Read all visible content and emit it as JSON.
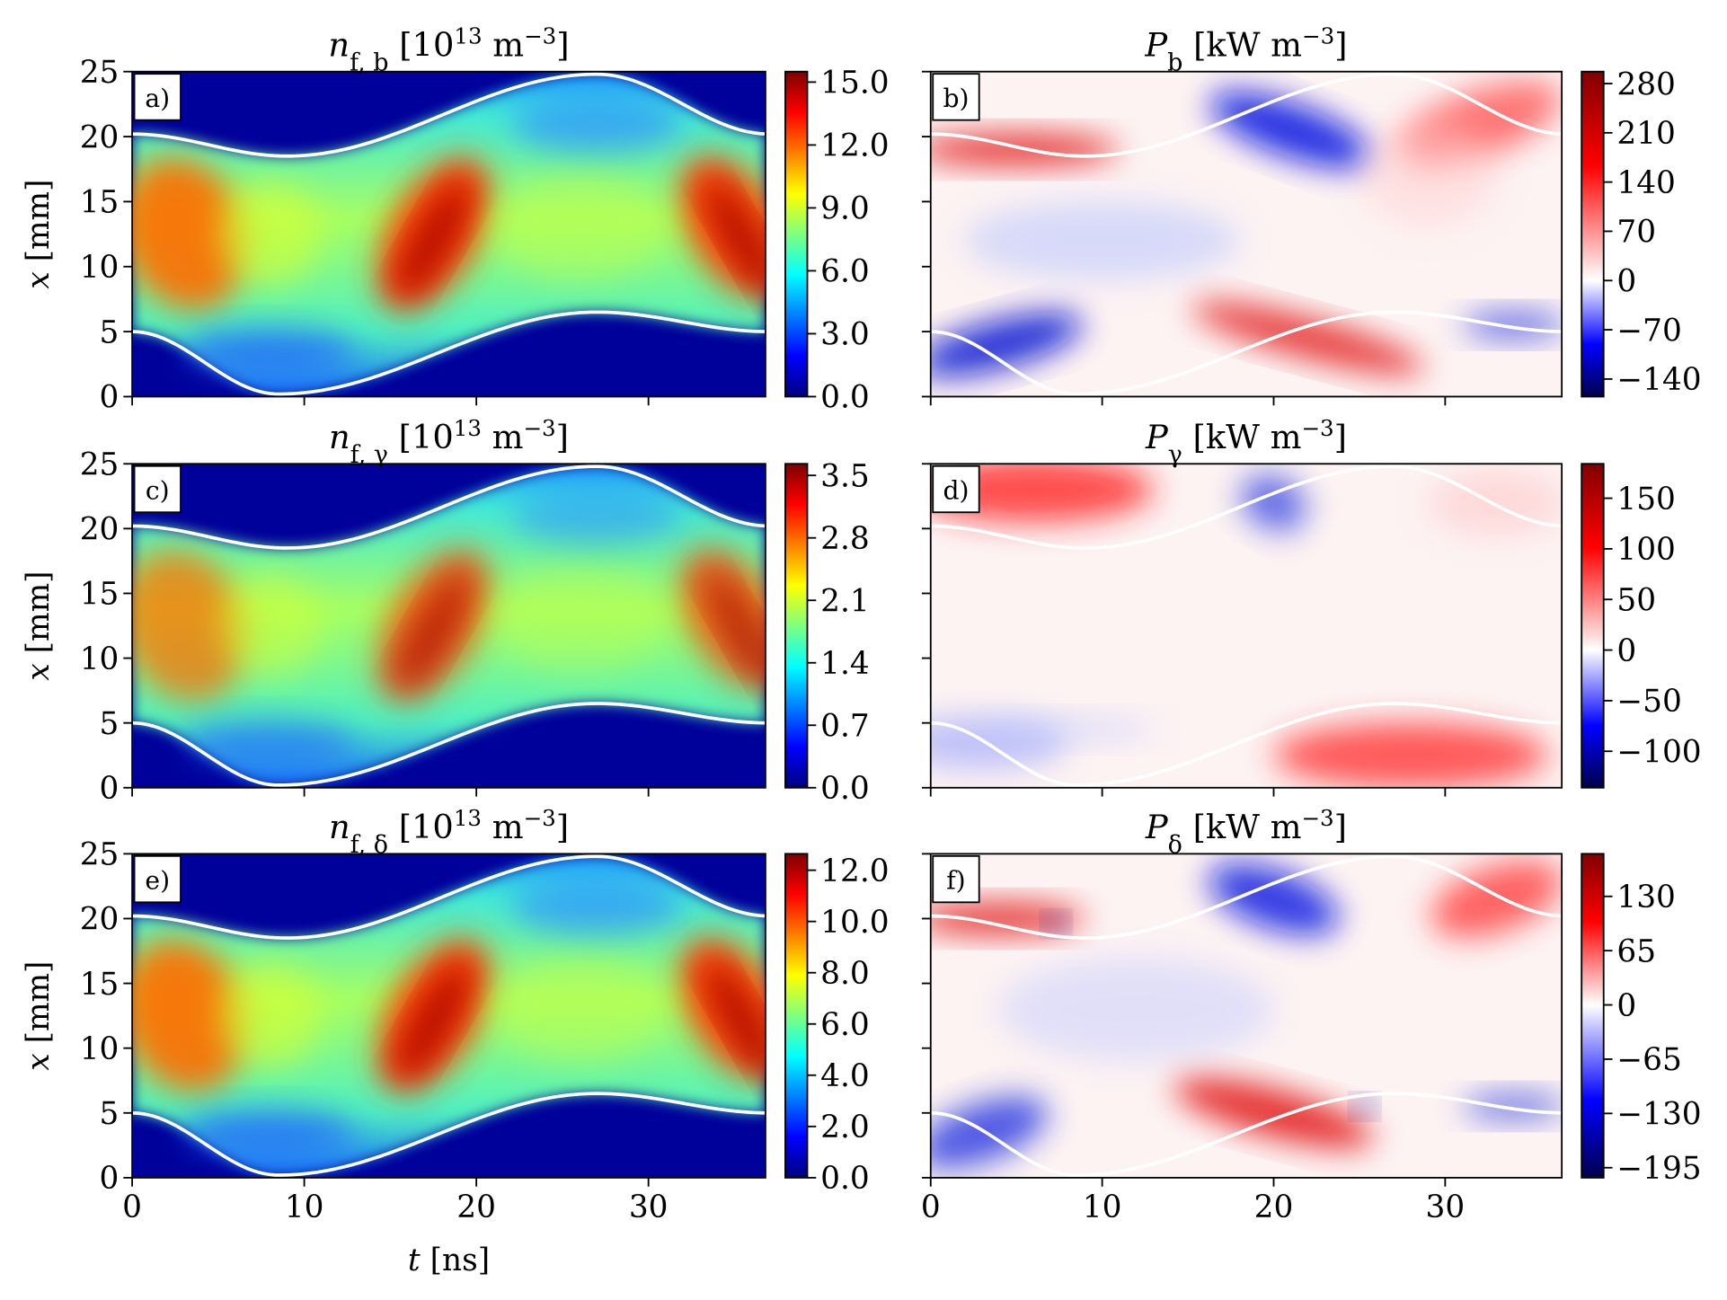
{
  "chart_data": [
    {
      "type": "heatmap",
      "panel": "a)",
      "title": [
        [
          "n",
          "i"
        ],
        [
          "f, b",
          "sub"
        ],
        [
          " [10",
          ""
        ],
        [
          "13",
          "sup"
        ],
        [
          " m",
          ""
        ],
        [
          "−3",
          "sup"
        ],
        [
          "]",
          ""
        ]
      ],
      "ylabel": [
        [
          "x",
          "i"
        ],
        [
          " [mm]",
          ""
        ]
      ],
      "xlim": [
        0,
        36.8
      ],
      "ylim": [
        0,
        25
      ],
      "xticks": [
        0,
        10,
        20,
        30
      ],
      "yticks": [
        0,
        5,
        10,
        15,
        20,
        25
      ],
      "show_xtick_labels": false,
      "show_ytick_labels": true,
      "colormap": "jet",
      "clim": [
        0,
        15.5
      ],
      "cticks": [
        {
          "value": 0,
          "label": "0.0"
        },
        {
          "value": 3,
          "label": "3.0"
        },
        {
          "value": 6,
          "label": "6.0"
        },
        {
          "value": 9,
          "label": "9.0"
        },
        {
          "value": 12,
          "label": "12.0"
        },
        {
          "value": 15,
          "label": "15.0"
        }
      ]
    },
    {
      "type": "heatmap",
      "panel": "b)",
      "title": [
        [
          "P",
          "i"
        ],
        [
          "b",
          "sub"
        ],
        [
          " [kW m",
          ""
        ],
        [
          "−3",
          "sup"
        ],
        [
          "]",
          ""
        ]
      ],
      "xlim": [
        0,
        36.8
      ],
      "ylim": [
        0,
        25
      ],
      "xticks": [
        0,
        10,
        20,
        30
      ],
      "yticks": [
        0,
        5,
        10,
        15,
        20,
        25
      ],
      "show_xtick_labels": false,
      "show_ytick_labels": false,
      "colormap": "seismic",
      "clim": [
        -165,
        297
      ],
      "cticks": [
        {
          "value": -140,
          "label": "−140"
        },
        {
          "value": -70,
          "label": "−70"
        },
        0,
        70,
        140,
        210,
        280
      ]
    },
    {
      "type": "heatmap",
      "panel": "c)",
      "title": [
        [
          "n",
          "i"
        ],
        [
          "f, γ",
          "sub"
        ],
        [
          " [10",
          ""
        ],
        [
          "13",
          "sup"
        ],
        [
          " m",
          ""
        ],
        [
          "−3",
          "sup"
        ],
        [
          "]",
          ""
        ]
      ],
      "ylabel": [
        [
          "x",
          "i"
        ],
        [
          " [mm]",
          ""
        ]
      ],
      "xlim": [
        0,
        36.8
      ],
      "ylim": [
        0,
        25
      ],
      "xticks": [
        0,
        10,
        20,
        30
      ],
      "yticks": [
        0,
        5,
        10,
        15,
        20,
        25
      ],
      "show_xtick_labels": false,
      "show_ytick_labels": true,
      "colormap": "jet",
      "clim": [
        0,
        3.63
      ],
      "cticks": [
        {
          "value": 0,
          "label": "0.0"
        },
        0.7,
        1.4,
        2.1,
        2.8,
        3.5
      ]
    },
    {
      "type": "heatmap",
      "panel": "d)",
      "title": [
        [
          "P",
          "i"
        ],
        [
          "γ",
          "sub"
        ],
        [
          " [kW m",
          ""
        ],
        [
          "−3",
          "sup"
        ],
        [
          "]",
          ""
        ]
      ],
      "xlim": [
        0,
        36.8
      ],
      "ylim": [
        0,
        25
      ],
      "xticks": [
        0,
        10,
        20,
        30
      ],
      "yticks": [
        0,
        5,
        10,
        15,
        20,
        25
      ],
      "show_xtick_labels": false,
      "show_ytick_labels": false,
      "colormap": "seismic",
      "clim": [
        -136,
        184
      ],
      "cticks": [
        {
          "value": -100,
          "label": "−100"
        },
        {
          "value": -50,
          "label": "−50"
        },
        0,
        50,
        100,
        150
      ]
    },
    {
      "type": "heatmap",
      "panel": "e)",
      "title": [
        [
          "n",
          "i"
        ],
        [
          "f, δ",
          "sub"
        ],
        [
          " [10",
          ""
        ],
        [
          "13",
          "sup"
        ],
        [
          " m",
          ""
        ],
        [
          "−3",
          "sup"
        ],
        [
          "]",
          ""
        ]
      ],
      "ylabel": [
        [
          "x",
          "i"
        ],
        [
          " [mm]",
          ""
        ]
      ],
      "xlabel": [
        [
          "t",
          "i"
        ],
        [
          " [ns]",
          ""
        ]
      ],
      "xlim": [
        0,
        36.8
      ],
      "ylim": [
        0,
        25
      ],
      "xticks": [
        0,
        10,
        20,
        30
      ],
      "yticks": [
        0,
        5,
        10,
        15,
        20,
        25
      ],
      "show_xtick_labels": true,
      "show_ytick_labels": true,
      "colormap": "jet",
      "clim": [
        0,
        12.64
      ],
      "cticks": [
        {
          "value": 0,
          "label": "0.0"
        },
        {
          "value": 2,
          "label": "2.0"
        },
        {
          "value": 4,
          "label": "4.0"
        },
        {
          "value": 6,
          "label": "6.0"
        },
        {
          "value": 8,
          "label": "8.0"
        },
        {
          "value": 10,
          "label": "10.0"
        },
        {
          "value": 12,
          "label": "12.0"
        }
      ]
    },
    {
      "type": "heatmap",
      "panel": "f)",
      "title": [
        [
          "P",
          "i"
        ],
        [
          "δ",
          "sub"
        ],
        [
          " [kW m",
          ""
        ],
        [
          "−3",
          "sup"
        ],
        [
          "]",
          ""
        ]
      ],
      "xlim": [
        0,
        36.8
      ],
      "ylim": [
        0,
        25
      ],
      "xticks": [
        0,
        10,
        20,
        30
      ],
      "yticks": [
        0,
        5,
        10,
        15,
        20,
        25
      ],
      "show_xtick_labels": true,
      "show_ytick_labels": false,
      "colormap": "seismic",
      "clim": [
        -207,
        181
      ],
      "cticks": [
        {
          "value": -195,
          "label": "−195"
        },
        {
          "value": -130,
          "label": "−130"
        },
        {
          "value": -65,
          "label": "−65"
        },
        0,
        65,
        130
      ]
    }
  ]
}
